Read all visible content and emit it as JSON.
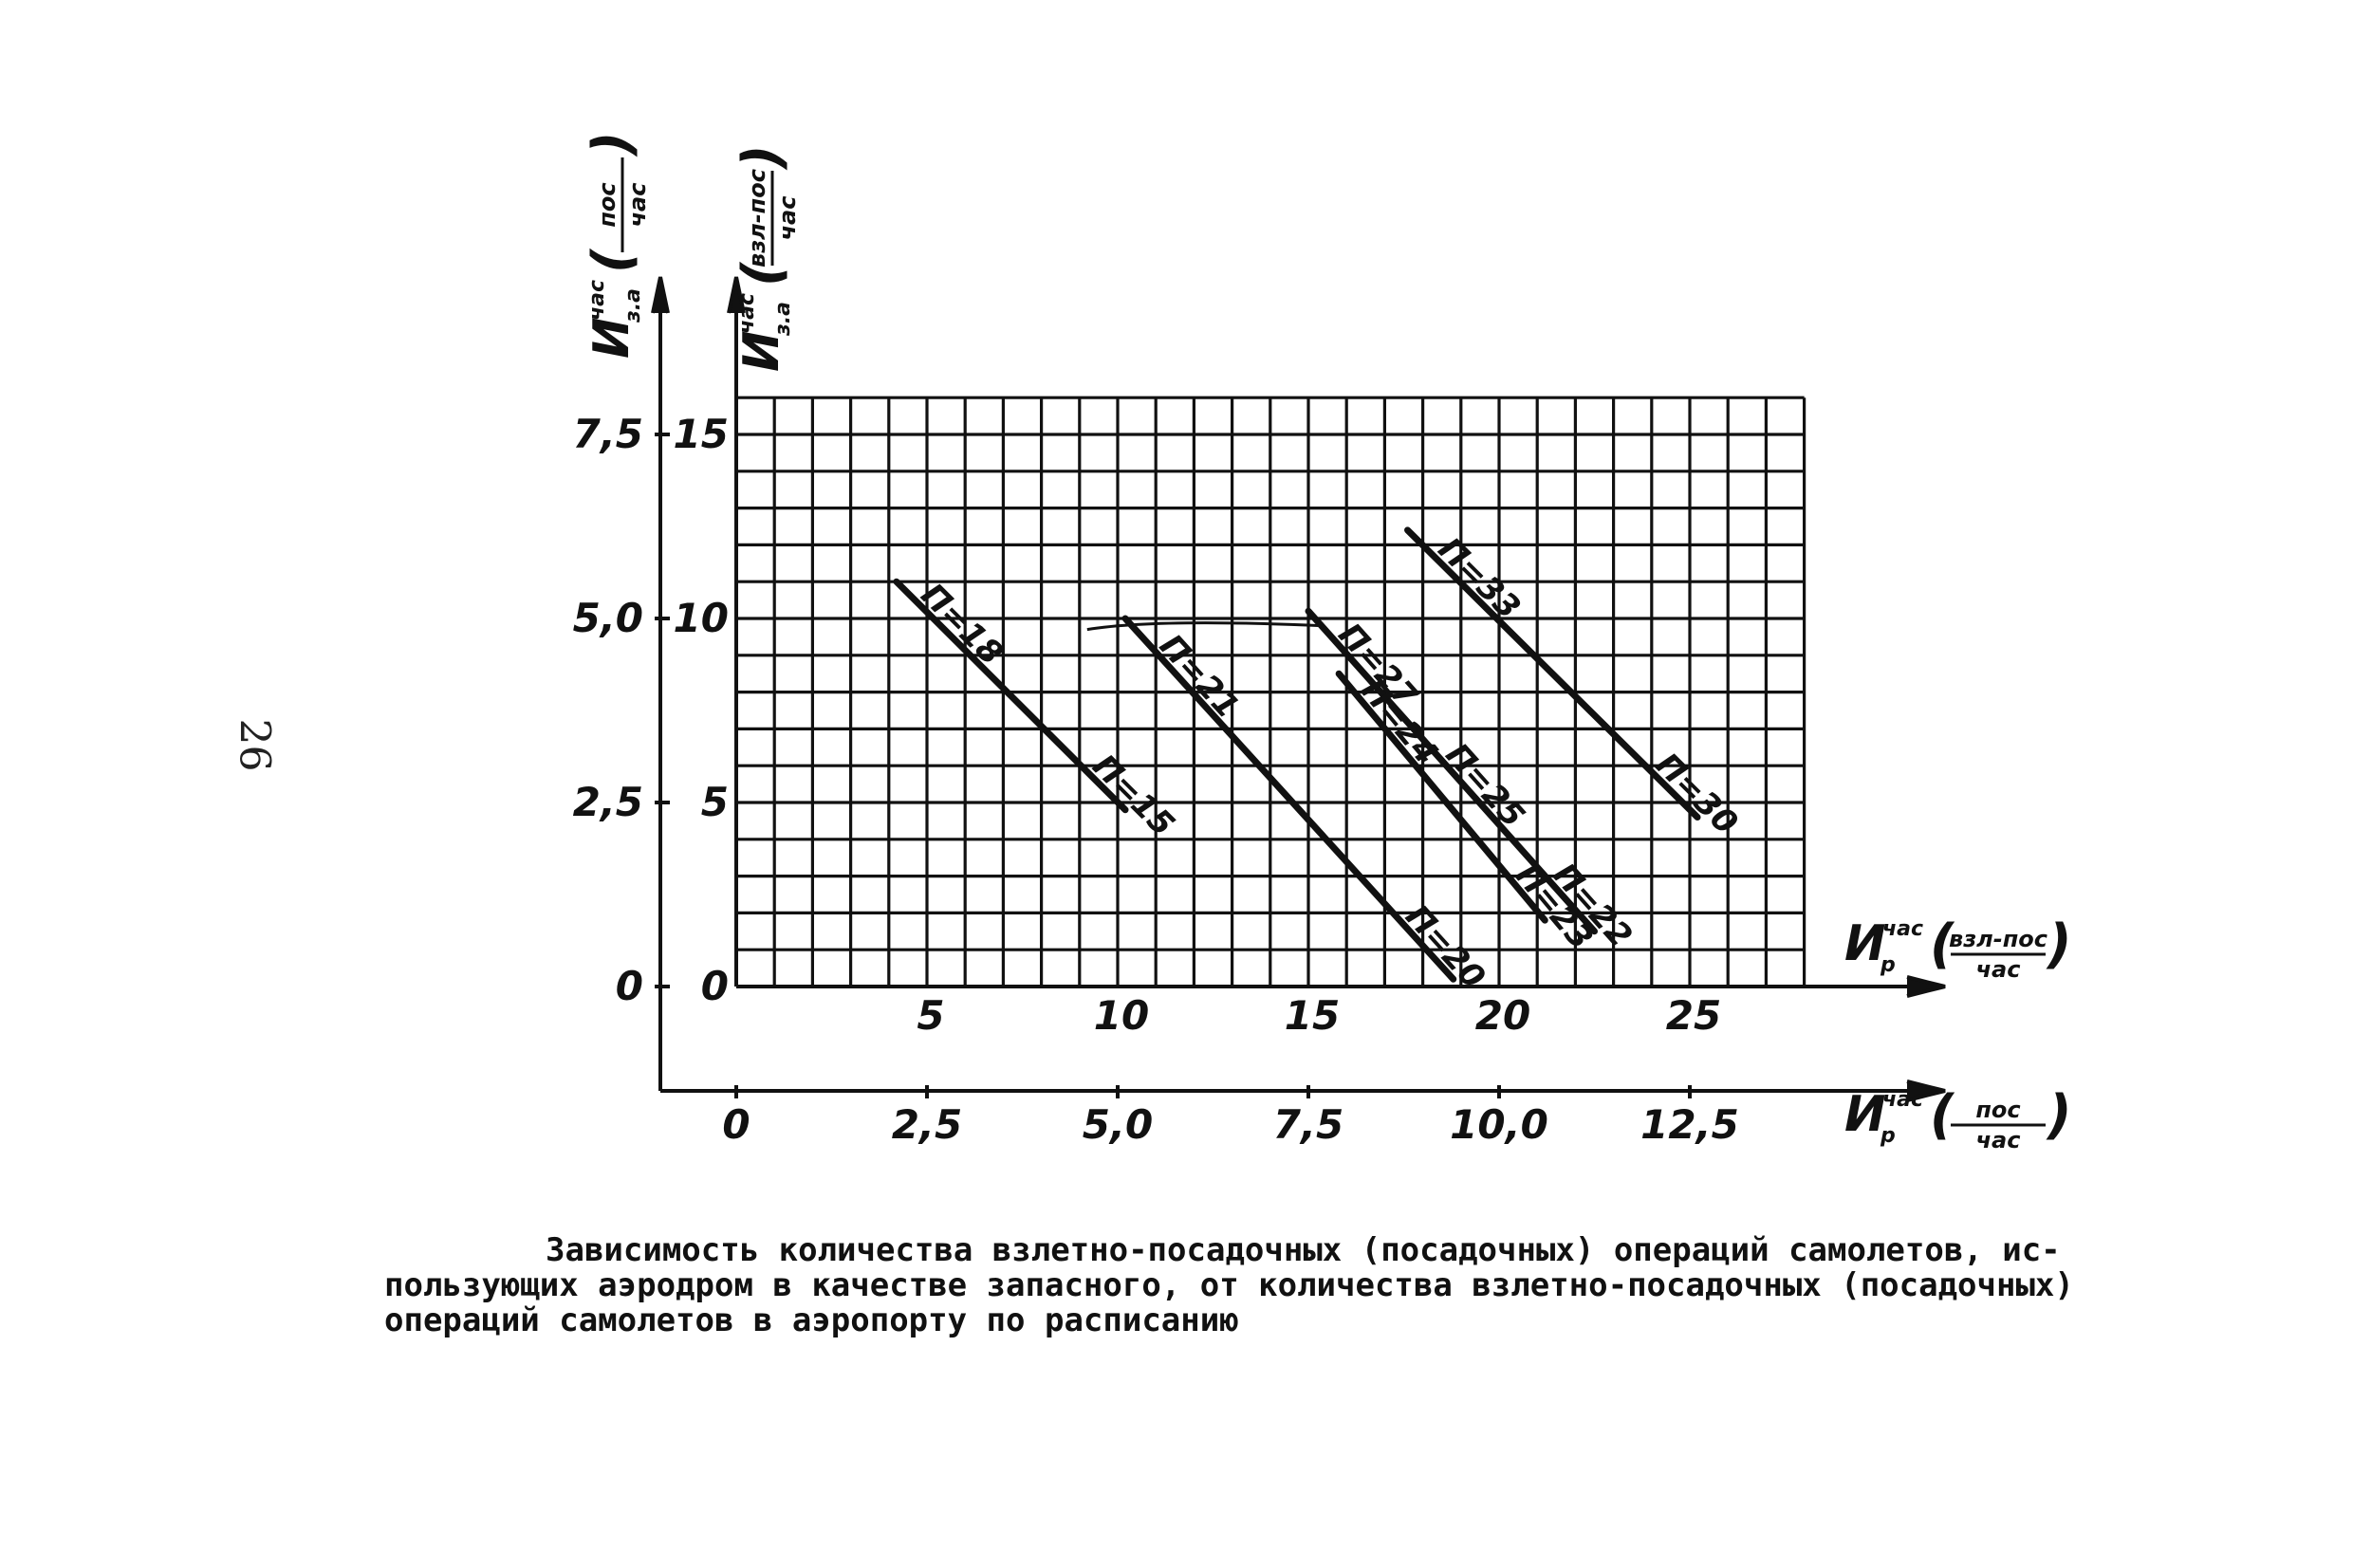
{
  "page_number": "26",
  "caption": {
    "line1": "Зависимость количества взлетно-посадочных (посадочных) операций самолетов, ис-",
    "line2": "пользующих аэродром в качестве запасного, от количества взлетно-посадочных (посадочных)",
    "line3": "операций самолетов в аэропорту по расписанию"
  },
  "axes": {
    "y_left_outer_label": {
      "symbol": "И",
      "superscript": "час",
      "subscript": "з.а",
      "unit_num": "пос",
      "unit_den": "час"
    },
    "y_left_inner_label": {
      "symbol": "И",
      "superscript": "час",
      "subscript": "з.а",
      "unit_num": "взл-пос",
      "unit_den": "час"
    },
    "x_top_label": {
      "symbol": "И",
      "superscript": "час",
      "subscript": "р",
      "unit_num": "взл-пос",
      "unit_den": "час"
    },
    "x_bottom_label": {
      "symbol": "И",
      "superscript": "час",
      "subscript": "р",
      "unit_num": "пос",
      "unit_den": "час"
    }
  },
  "chart_data": {
    "type": "line",
    "title": "",
    "x_primary": {
      "unit": "взл-пос/час",
      "range": [
        0,
        28
      ],
      "ticks": [
        "5",
        "10",
        "15",
        "20",
        "25"
      ]
    },
    "x_secondary": {
      "unit": "пос/час",
      "ticks": [
        "0",
        "2,5",
        "5,0",
        "7,5",
        "10,0",
        "12,5"
      ]
    },
    "y_primary": {
      "unit": "взл-пос/час",
      "range": [
        0,
        16
      ],
      "ticks": [
        "0",
        "5",
        "10",
        "15"
      ]
    },
    "y_secondary": {
      "unit": "пос/час",
      "ticks": [
        "0",
        "2,5",
        "5,0",
        "7,5"
      ]
    },
    "grid": true,
    "series": [
      {
        "labels": [
          "П=18",
          "П=15"
        ],
        "points": [
          [
            4.2,
            11.0
          ],
          [
            10.2,
            4.8
          ]
        ]
      },
      {
        "labels": [
          "П=21",
          "П=20"
        ],
        "points": [
          [
            10.2,
            10.0
          ],
          [
            18.8,
            0.2
          ]
        ]
      },
      {
        "labels": [
          "П=24",
          "П=23"
        ],
        "points": [
          [
            15.8,
            8.5
          ],
          [
            21.2,
            1.8
          ]
        ]
      },
      {
        "labels": [
          "П=27",
          "П=25",
          "П=22"
        ],
        "points": [
          [
            15.0,
            10.2
          ],
          [
            22.5,
            1.5
          ]
        ]
      },
      {
        "labels": [
          "П=33",
          "П=30"
        ],
        "points": [
          [
            17.6,
            12.4
          ],
          [
            25.2,
            4.6
          ]
        ]
      }
    ],
    "extra_curve": {
      "points": [
        [
          9.2,
          9.7
        ],
        [
          11.0,
          10.0
        ],
        [
          15.4,
          9.8
        ]
      ]
    }
  }
}
